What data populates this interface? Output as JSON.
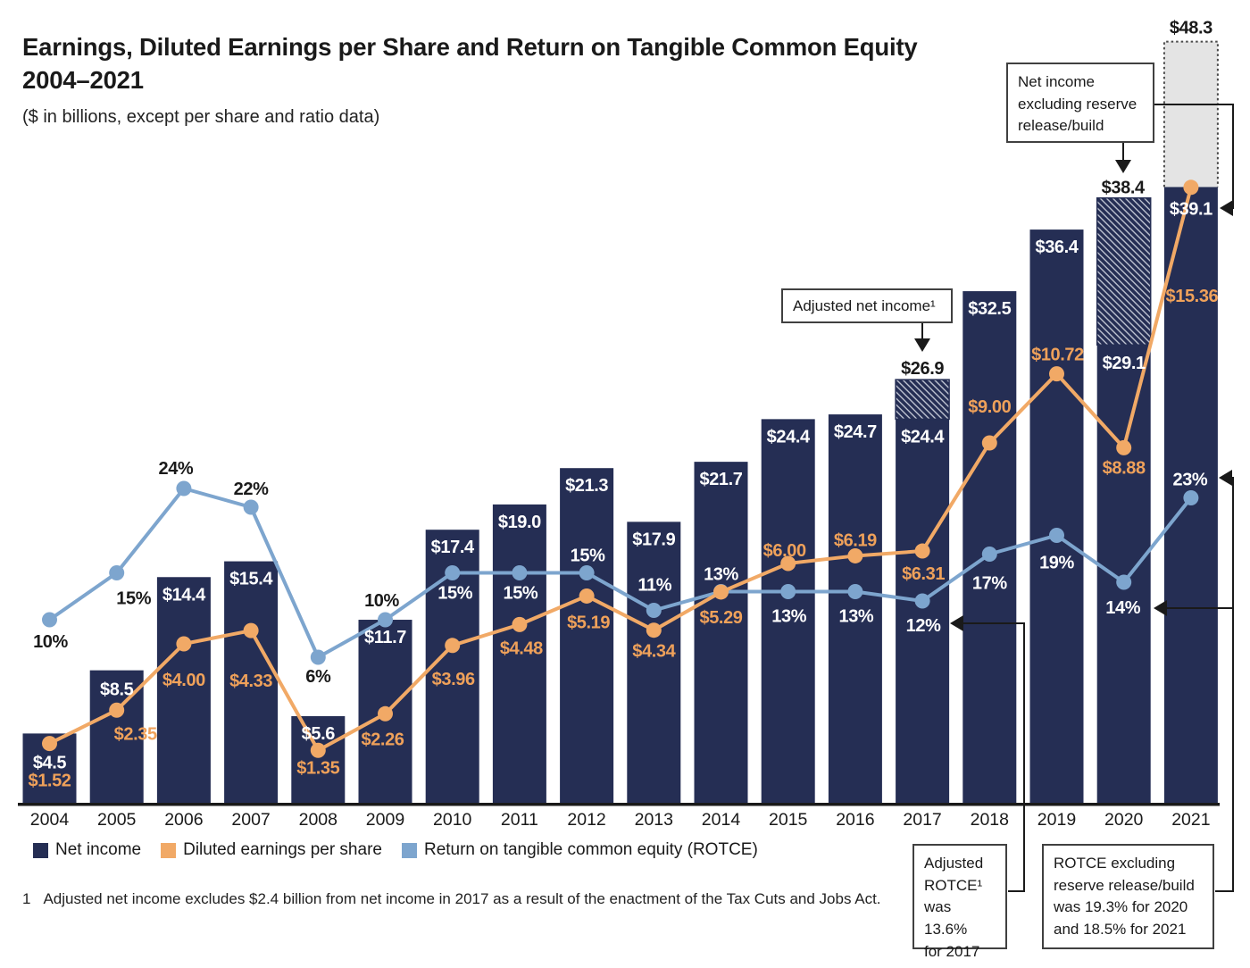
{
  "header": {
    "title_line1": "Earnings, Diluted Earnings per Share and Return on Tangible Common Equity",
    "title_line2": "2004–2021",
    "subtitle": "($ in billions, except per share and ratio data)"
  },
  "legend": {
    "items": [
      {
        "label": "Net income",
        "color": "#252e54",
        "swatch": "navy-square"
      },
      {
        "label": "Diluted earnings per share",
        "color": "#f1a966",
        "swatch": "orange-square"
      },
      {
        "label": "Return on tangible common equity (ROTCE)",
        "color": "#7da5ce",
        "swatch": "blue-square"
      }
    ]
  },
  "callouts": {
    "net_income_excl_reserve": "Net income\nexcluding reserve\nrelease/build",
    "adjusted_net_income": "Adjusted net income¹",
    "adjusted_rotce": "Adjusted\nROTCE¹\nwas 13.6%\nfor 2017",
    "rotce_excl_reserve": "ROTCE excluding\nreserve release/build\nwas 19.3% for 2020\nand 18.5% for 2021"
  },
  "footnote": {
    "marker": "1",
    "text": "Adjusted net income excludes $2.4 billion from net income in 2017 as a result of the enactment of the Tax Cuts and Jobs Act."
  },
  "colors": {
    "bar": "#252e54",
    "hatch_stripe": "#c9cdda",
    "eps_line": "#f1a966",
    "eps_text": "#efa15a",
    "rotce_line": "#7da5ce",
    "dark_text": "#1a1a1a",
    "gray_fill": "#e4e4e4",
    "gray_dot_border": "#4a4a4a",
    "axis": "#1a1a1a"
  },
  "chart_data": {
    "type": "bar+line combo",
    "title": "Earnings, Diluted Earnings per Share and Return on Tangible Common Equity 2004–2021",
    "subtitle": "($ in billions, except per share and ratio data)",
    "categories": [
      "2004",
      "2005",
      "2006",
      "2007",
      "2008",
      "2009",
      "2010",
      "2011",
      "2012",
      "2013",
      "2014",
      "2015",
      "2016",
      "2017",
      "2018",
      "2019",
      "2020",
      "2021"
    ],
    "legend_position": "bottom-left",
    "grid": false,
    "series": [
      {
        "name": "Net income",
        "type": "bar",
        "unit": "$ billions",
        "values": [
          4.5,
          8.5,
          14.4,
          15.4,
          5.6,
          11.7,
          17.4,
          19.0,
          21.3,
          17.9,
          21.7,
          24.4,
          24.7,
          24.4,
          32.5,
          36.4,
          29.1,
          39.1
        ],
        "labels": [
          "$4.5",
          "$8.5",
          "$14.4",
          "$15.4",
          "$5.6",
          "$11.7",
          "$17.4",
          "$19.0",
          "$21.3",
          "$17.9",
          "$21.7",
          "$24.4",
          "$24.7",
          "$24.4",
          "$32.5",
          "$36.4",
          "$29.1",
          "$39.1"
        ]
      },
      {
        "name": "Diluted earnings per share",
        "type": "line",
        "unit": "$ per share",
        "values": [
          1.52,
          2.35,
          4.0,
          4.33,
          1.35,
          2.26,
          3.96,
          4.48,
          5.19,
          4.34,
          5.29,
          6.0,
          6.19,
          6.31,
          9.0,
          10.72,
          8.88,
          15.36
        ],
        "labels": [
          "$1.52",
          "$2.35",
          "$4.00",
          "$4.33",
          "$1.35",
          "$2.26",
          "$3.96",
          "$4.48",
          "$5.19",
          "$4.34",
          "$5.29",
          "$6.00",
          "$6.19",
          "$6.31",
          "$9.00",
          "$10.72",
          "$8.88",
          "$15.36"
        ]
      },
      {
        "name": "Return on tangible common equity (ROTCE)",
        "type": "line",
        "unit": "%",
        "values": [
          10,
          15,
          24,
          22,
          6,
          10,
          15,
          15,
          15,
          11,
          13,
          13,
          13,
          12,
          17,
          19,
          14,
          23
        ],
        "labels": [
          "10%",
          "15%",
          "24%",
          "22%",
          "6%",
          "10%",
          "15%",
          "15%",
          "15%",
          "11%",
          "13%",
          "13%",
          "13%",
          "12%",
          "17%",
          "19%",
          "14%",
          "23%"
        ]
      }
    ],
    "overlays": [
      {
        "year": "2017",
        "value": 26.9,
        "label": "$26.9",
        "style": "hatched",
        "meaning": "Adjusted net income"
      },
      {
        "year": "2020",
        "value": 38.4,
        "label": "$38.4",
        "style": "hatched",
        "meaning": "Net income excluding reserve release/build"
      },
      {
        "year": "2021",
        "value": 48.3,
        "label": "$48.3",
        "style": "dotted-gray",
        "meaning": "Net income excluding reserve release/build"
      }
    ]
  }
}
